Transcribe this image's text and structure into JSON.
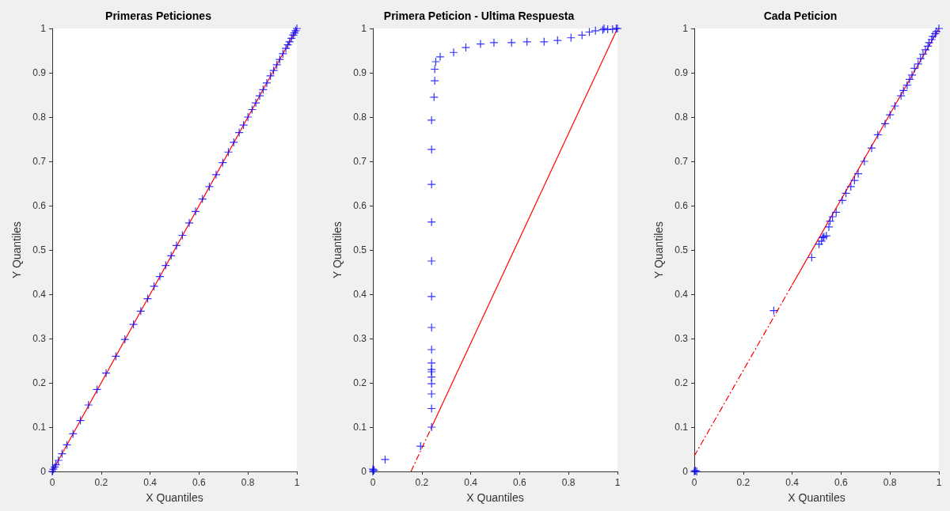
{
  "chart_data": [
    {
      "type": "scatter",
      "title": "Primeras Peticiones",
      "xlabel": "X Quantiles",
      "ylabel": "Y Quantiles",
      "xlim": [
        0,
        1
      ],
      "ylim": [
        0,
        1
      ],
      "xticks": [
        0,
        0.2,
        0.4,
        0.6,
        0.8,
        1
      ],
      "yticks": [
        0,
        0.1,
        0.2,
        0.3,
        0.4,
        0.5,
        0.6,
        0.7,
        0.8,
        0.9,
        1
      ],
      "grid": false,
      "series": [
        {
          "type": "line",
          "marker": "none",
          "color": "#ff0000",
          "line_style": "solid",
          "x": [
            0,
            1
          ],
          "values": [
            0,
            1
          ]
        },
        {
          "marker": "cross",
          "color": "#0000ff",
          "x": [
            0,
            0.005,
            0.01,
            0.015,
            0.025,
            0.04,
            0.06,
            0.085,
            0.115,
            0.148,
            0.183,
            0.22,
            0.26,
            0.297,
            0.332,
            0.362,
            0.39,
            0.416,
            0.44,
            0.464,
            0.486,
            0.508,
            0.532,
            0.56,
            0.586,
            0.614,
            0.642,
            0.67,
            0.697,
            0.72,
            0.742,
            0.764,
            0.782,
            0.8,
            0.817,
            0.832,
            0.848,
            0.862,
            0.877,
            0.892,
            0.905,
            0.918,
            0.93,
            0.943,
            0.955,
            0.963,
            0.97,
            0.978,
            0.985,
            0.99,
            0.995,
            1
          ],
          "values": [
            0,
            0.005,
            0.01,
            0.015,
            0.025,
            0.04,
            0.06,
            0.085,
            0.115,
            0.15,
            0.185,
            0.222,
            0.26,
            0.298,
            0.332,
            0.362,
            0.39,
            0.418,
            0.44,
            0.465,
            0.487,
            0.51,
            0.533,
            0.561,
            0.587,
            0.615,
            0.643,
            0.67,
            0.697,
            0.721,
            0.743,
            0.765,
            0.782,
            0.8,
            0.817,
            0.832,
            0.848,
            0.862,
            0.877,
            0.893,
            0.905,
            0.918,
            0.93,
            0.943,
            0.955,
            0.963,
            0.97,
            0.978,
            0.985,
            0.99,
            0.995,
            1
          ]
        }
      ]
    },
    {
      "type": "scatter",
      "title": "Primera Peticion - Ultima Respuesta",
      "xlabel": "X Quantiles",
      "ylabel": "Y Quantiles",
      "xlim": [
        0,
        1
      ],
      "ylim": [
        0,
        1
      ],
      "xticks": [
        0,
        0.2,
        0.4,
        0.6,
        0.8,
        1
      ],
      "yticks": [
        0,
        0.1,
        0.2,
        0.3,
        0.4,
        0.5,
        0.6,
        0.7,
        0.8,
        0.9,
        1
      ],
      "grid": false,
      "series": [
        {
          "type": "line",
          "marker": "none",
          "color": "#ff0000",
          "line_style": "dashdot",
          "x": [
            0.156,
            0.24
          ],
          "values": [
            0,
            0.1
          ]
        },
        {
          "type": "line",
          "marker": "none",
          "color": "#ff0000",
          "line_style": "solid",
          "x": [
            0.24,
            1
          ],
          "values": [
            0.1,
            1
          ]
        },
        {
          "marker": "cross",
          "color": "#0000ff",
          "x": [
            0,
            0,
            0.005,
            0.05,
            0.195,
            0.24,
            0.24,
            0.24,
            0.24,
            0.24,
            0.24,
            0.24,
            0.24,
            0.24,
            0.24,
            0.24,
            0.24,
            0.24,
            0.24,
            0.24,
            0.24,
            0.25,
            0.253,
            0.253,
            0.257,
            0.275,
            0.33,
            0.38,
            0.44,
            0.495,
            0.567,
            0.63,
            0.7,
            0.755,
            0.81,
            0.855,
            0.885,
            0.91,
            0.94,
            0.945,
            0.96,
            0.98,
            0.995,
            1
          ],
          "values": [
            0,
            0.005,
            0.003,
            0.027,
            0.057,
            0.1,
            0.142,
            0.175,
            0.198,
            0.213,
            0.225,
            0.23,
            0.245,
            0.275,
            0.325,
            0.395,
            0.475,
            0.563,
            0.648,
            0.727,
            0.793,
            0.845,
            0.882,
            0.908,
            0.925,
            0.936,
            0.946,
            0.957,
            0.965,
            0.968,
            0.968,
            0.97,
            0.97,
            0.973,
            0.979,
            0.985,
            0.992,
            0.995,
            0.997,
            1,
            0.998,
            0.998,
            1,
            1
          ]
        }
      ]
    },
    {
      "type": "scatter",
      "title": "Cada Peticion",
      "xlabel": "X Quantiles",
      "ylabel": "Y Quantiles",
      "xlim": [
        0,
        1
      ],
      "ylim": [
        0,
        1
      ],
      "xticks": [
        0,
        0.2,
        0.4,
        0.6,
        0.8,
        1
      ],
      "yticks": [
        0,
        0.1,
        0.2,
        0.3,
        0.4,
        0.5,
        0.6,
        0.7,
        0.8,
        0.9,
        1
      ],
      "grid": false,
      "series": [
        {
          "type": "line",
          "marker": "none",
          "color": "#ff0000",
          "line_style": "dashdot",
          "x": [
            0,
            0.4
          ],
          "values": [
            0.035,
            0.421
          ]
        },
        {
          "type": "line",
          "marker": "none",
          "color": "#ff0000",
          "line_style": "solid",
          "x": [
            0.4,
            1
          ],
          "values": [
            0.421,
            1
          ]
        },
        {
          "marker": "cross",
          "color": "#0000ff",
          "x": [
            0,
            0.005,
            0.01,
            0.325,
            0.48,
            0.51,
            0.52,
            0.525,
            0.53,
            0.54,
            0.55,
            0.555,
            0.565,
            0.58,
            0.605,
            0.62,
            0.64,
            0.655,
            0.67,
            0.695,
            0.725,
            0.75,
            0.78,
            0.8,
            0.82,
            0.845,
            0.855,
            0.87,
            0.88,
            0.89,
            0.9,
            0.915,
            0.925,
            0.935,
            0.945,
            0.955,
            0.96,
            0.97,
            0.975,
            0.985,
            0.99,
            1
          ],
          "values": [
            0,
            0.002,
            0,
            0.363,
            0.483,
            0.513,
            0.52,
            0.528,
            0.53,
            0.532,
            0.552,
            0.565,
            0.575,
            0.585,
            0.612,
            0.628,
            0.643,
            0.657,
            0.672,
            0.7,
            0.73,
            0.76,
            0.785,
            0.805,
            0.825,
            0.848,
            0.86,
            0.872,
            0.885,
            0.895,
            0.91,
            0.92,
            0.932,
            0.942,
            0.952,
            0.96,
            0.968,
            0.975,
            0.982,
            0.988,
            0.993,
            1
          ]
        }
      ]
    }
  ]
}
